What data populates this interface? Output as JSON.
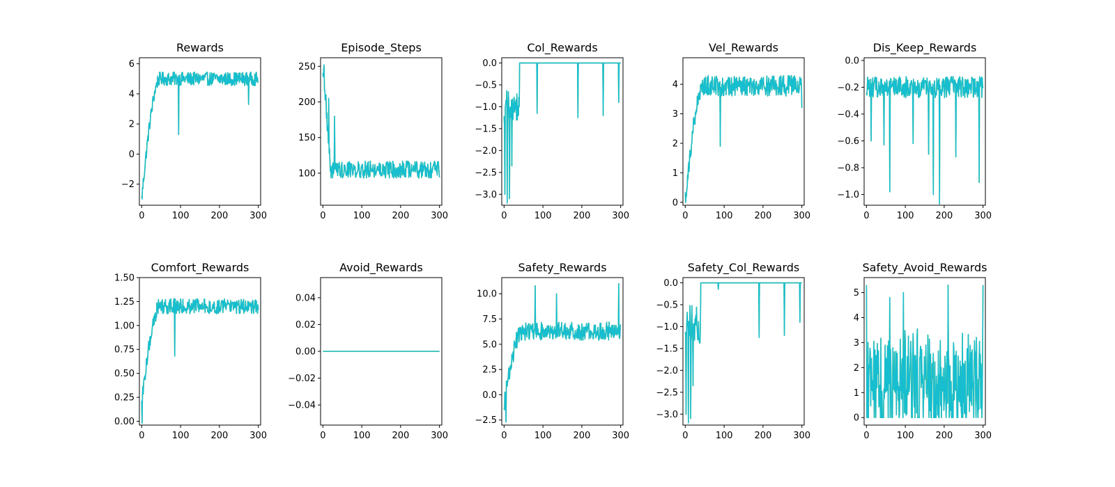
{
  "chart_data": [
    {
      "type": "line",
      "title": "Rewards",
      "xlim": [
        -6,
        306
      ],
      "ylim": [
        -3.4,
        6.4
      ],
      "xticks": [
        0,
        100,
        200,
        300
      ],
      "yticks": [
        -2,
        0,
        2,
        4,
        6
      ],
      "ytick_labels": [
        "−2",
        "0",
        "2",
        "4",
        "6"
      ],
      "series": [
        {
          "profile": "rise",
          "start": -3.0,
          "plateau": 5.0,
          "noise": 0.45,
          "spikes": [
            [
              95,
              1.3
            ],
            [
              275,
              3.3
            ]
          ],
          "x_end": 300
        }
      ]
    },
    {
      "type": "line",
      "title": "Episode_Steps",
      "xlim": [
        -6,
        306
      ],
      "ylim": [
        55,
        262
      ],
      "xticks": [
        0,
        100,
        200,
        300
      ],
      "yticks": [
        100,
        150,
        200,
        250
      ],
      "ytick_labels": [
        "100",
        "150",
        "200",
        "250"
      ],
      "series": [
        {
          "profile": "decay",
          "start": 250,
          "plateau": 105,
          "noise": 12,
          "spikes": [
            [
              3,
              252
            ],
            [
              8,
              210
            ],
            [
              15,
              205
            ],
            [
              30,
              180
            ]
          ],
          "x_end": 300
        }
      ]
    },
    {
      "type": "line",
      "title": "Col_Rewards",
      "xlim": [
        -6,
        306
      ],
      "ylim": [
        -3.25,
        0.12
      ],
      "xticks": [
        0,
        100,
        200,
        300
      ],
      "yticks": [
        -3.0,
        -2.5,
        -2.0,
        -1.5,
        -1.0,
        -0.5,
        0.0
      ],
      "ytick_labels": [
        "−3.0",
        "−2.5",
        "−2.0",
        "−1.5",
        "−1.0",
        "−0.5",
        "0.0"
      ],
      "series": [
        {
          "profile": "drops",
          "start": -1.0,
          "plateau": 0.0,
          "noise": 0.3,
          "spikes": [
            [
              2,
              -3.0
            ],
            [
              8,
              -3.2
            ],
            [
              14,
              -3.1
            ],
            [
              20,
              -2.35
            ],
            [
              32,
              -1.3
            ],
            [
              85,
              -1.15
            ],
            [
              190,
              -1.25
            ],
            [
              255,
              -1.2
            ],
            [
              295,
              -0.9
            ]
          ],
          "x_end": 300
        }
      ]
    },
    {
      "type": "line",
      "title": "Vel_Rewards",
      "xlim": [
        -6,
        306
      ],
      "ylim": [
        -0.1,
        4.9
      ],
      "xticks": [
        0,
        100,
        200,
        300
      ],
      "yticks": [
        0,
        1,
        2,
        3,
        4
      ],
      "ytick_labels": [
        "0",
        "1",
        "2",
        "3",
        "4"
      ],
      "series": [
        {
          "profile": "rise",
          "start": 0.1,
          "plateau": 3.95,
          "noise": 0.35,
          "spikes": [
            [
              90,
              1.9
            ],
            [
              300,
              3.2
            ]
          ],
          "x_end": 300
        }
      ]
    },
    {
      "type": "line",
      "title": "Dis_Keep_Rewards",
      "xlim": [
        -6,
        306
      ],
      "ylim": [
        -1.08,
        0.02
      ],
      "xticks": [
        0,
        100,
        200,
        300
      ],
      "yticks": [
        -1.0,
        -0.8,
        -0.6,
        -0.4,
        -0.2,
        0.0
      ],
      "ytick_labels": [
        "−1.0",
        "−0.8",
        "−0.6",
        "−0.4",
        "−0.2",
        "0.0"
      ],
      "series": [
        {
          "profile": "flat",
          "start": -0.2,
          "plateau": -0.2,
          "noise": 0.08,
          "spikes": [
            [
              12,
              -0.6
            ],
            [
              45,
              -0.63
            ],
            [
              60,
              -0.98
            ],
            [
              120,
              -0.62
            ],
            [
              160,
              -0.7
            ],
            [
              172,
              -1.0
            ],
            [
              188,
              -1.07
            ],
            [
              230,
              -0.72
            ],
            [
              290,
              -0.91
            ]
          ],
          "x_end": 300
        }
      ]
    },
    {
      "type": "line",
      "title": "Comfort_Rewards",
      "xlim": [
        -6,
        306
      ],
      "ylim": [
        -0.04,
        1.5
      ],
      "xticks": [
        0,
        100,
        200,
        300
      ],
      "yticks": [
        0.0,
        0.25,
        0.5,
        0.75,
        1.0,
        1.25,
        1.5
      ],
      "ytick_labels": [
        "0.00",
        "0.25",
        "0.50",
        "0.75",
        "1.00",
        "1.25",
        "1.50"
      ],
      "series": [
        {
          "profile": "rise",
          "start": 0.2,
          "plateau": 1.2,
          "noise": 0.08,
          "spikes": [
            [
              1,
              -0.02
            ],
            [
              85,
              0.68
            ]
          ],
          "x_end": 300
        }
      ]
    },
    {
      "type": "line",
      "title": "Avoid_Rewards",
      "xlim": [
        -6,
        306
      ],
      "ylim": [
        -0.055,
        0.055
      ],
      "xticks": [
        0,
        100,
        200,
        300
      ],
      "yticks": [
        -0.04,
        -0.02,
        0.0,
        0.02,
        0.04
      ],
      "ytick_labels": [
        "−0.04",
        "−0.02",
        "0.00",
        "0.02",
        "0.04"
      ],
      "series": [
        {
          "profile": "flat",
          "start": 0,
          "plateau": 0,
          "noise": 0,
          "spikes": [],
          "x_end": 300
        }
      ]
    },
    {
      "type": "line",
      "title": "Safety_Rewards",
      "xlim": [
        -6,
        306
      ],
      "ylim": [
        -3.0,
        11.6
      ],
      "xticks": [
        0,
        100,
        200,
        300
      ],
      "yticks": [
        -2.5,
        0.0,
        2.5,
        5.0,
        7.5,
        10.0
      ],
      "ytick_labels": [
        "−2.5",
        "0.0",
        "2.5",
        "5.0",
        "7.5",
        "10.0"
      ],
      "series": [
        {
          "profile": "rise",
          "start": -1.0,
          "plateau": 6.3,
          "noise": 0.9,
          "spikes": [
            [
              5,
              -2.7
            ],
            [
              80,
              10.8
            ],
            [
              135,
              10.0
            ],
            [
              295,
              11.0
            ]
          ],
          "x_end": 300
        }
      ]
    },
    {
      "type": "line",
      "title": "Safety_Col_Rewards",
      "xlim": [
        -6,
        306
      ],
      "ylim": [
        -3.25,
        0.12
      ],
      "xticks": [
        0,
        100,
        200,
        300
      ],
      "yticks": [
        -3.0,
        -2.5,
        -2.0,
        -1.5,
        -1.0,
        -0.5,
        0.0
      ],
      "ytick_labels": [
        "−3.0",
        "−2.5",
        "−2.0",
        "−1.5",
        "−1.0",
        "−0.5",
        "0.0"
      ],
      "series": [
        {
          "profile": "drops",
          "start": -1.0,
          "plateau": 0.0,
          "noise": 0.3,
          "spikes": [
            [
              2,
              -3.0
            ],
            [
              8,
              -3.2
            ],
            [
              14,
              -3.1
            ],
            [
              20,
              -2.35
            ],
            [
              32,
              -1.3
            ],
            [
              85,
              -0.15
            ],
            [
              190,
              -1.25
            ],
            [
              255,
              -1.2
            ],
            [
              295,
              -0.9
            ]
          ],
          "x_end": 300
        }
      ]
    },
    {
      "type": "line",
      "title": "Safety_Avoid_Rewards",
      "xlim": [
        -6,
        306
      ],
      "ylim": [
        -0.3,
        5.6
      ],
      "xticks": [
        0,
        100,
        200,
        300
      ],
      "yticks": [
        0,
        1,
        2,
        3,
        4,
        5
      ],
      "ytick_labels": [
        "0",
        "1",
        "2",
        "3",
        "4",
        "5"
      ],
      "series": [
        {
          "profile": "bursty",
          "start": 1.0,
          "plateau": 1.5,
          "noise": 1.2,
          "spikes": [
            [
              0,
              5.3
            ],
            [
              60,
              4.8
            ],
            [
              95,
              5.0
            ],
            [
              210,
              5.3
            ],
            [
              300,
              5.3
            ]
          ],
          "x_end": 300
        }
      ]
    }
  ],
  "colors": {
    "series": "#17becf",
    "series_under": "#bcbd22",
    "axes": "#000000",
    "background": "#ffffff"
  }
}
